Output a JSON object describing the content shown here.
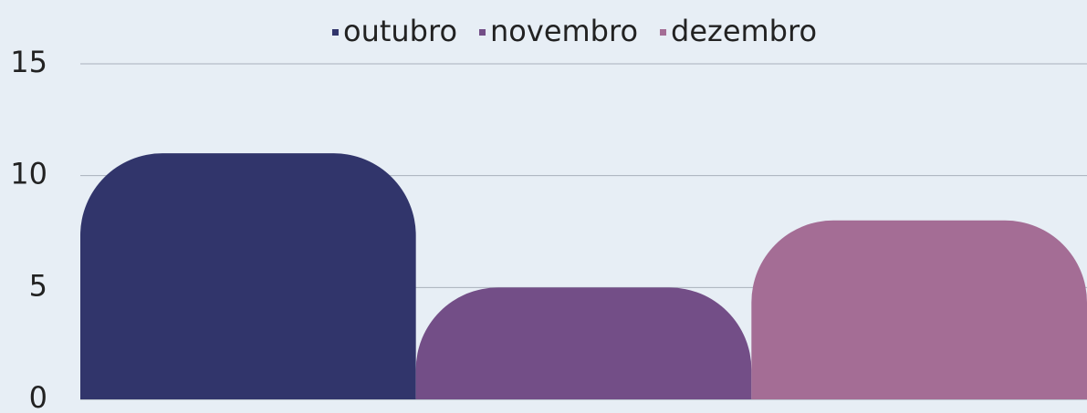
{
  "chart_data": {
    "type": "bar",
    "categories": [
      null
    ],
    "series": [
      {
        "name": "outubro",
        "color": "#31356b",
        "values": [
          11
        ]
      },
      {
        "name": "novembro",
        "color": "#734e87",
        "values": [
          5
        ]
      },
      {
        "name": "dezembro",
        "color": "#a46d95",
        "values": [
          8
        ]
      }
    ],
    "ylim": [
      0,
      15
    ],
    "yticks": [
      0,
      5,
      10,
      15
    ],
    "grid": true,
    "legend": "top"
  }
}
